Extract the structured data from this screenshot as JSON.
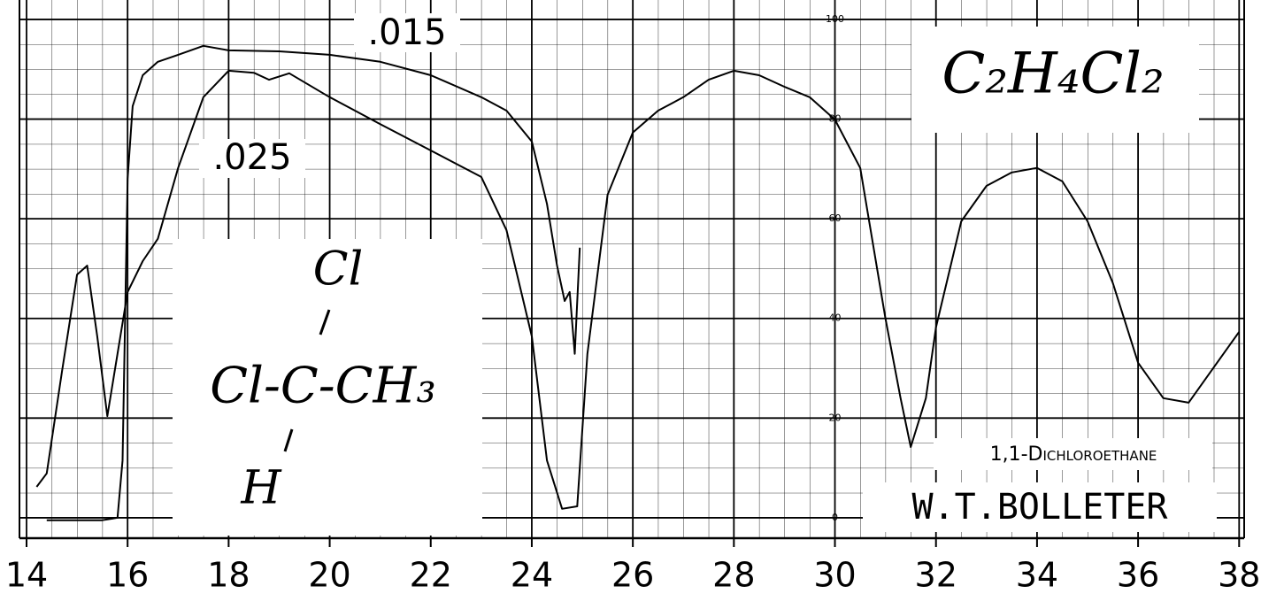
{
  "chart_data": {
    "type": "line",
    "xlim": [
      13.86,
      38.1
    ],
    "ylim": [
      -4.1,
      103.9
    ],
    "xticks": [
      14,
      16,
      18,
      20,
      22,
      24,
      26,
      28,
      30,
      32,
      34,
      36,
      38
    ],
    "yticks": [
      0,
      20,
      40,
      60,
      80,
      100
    ],
    "grid": true,
    "series": [
      {
        "name": ".015",
        "color": "#000000",
        "x": [
          14.4,
          15.0,
          15.5,
          15.8,
          15.9,
          16.0,
          16.1,
          16.3,
          16.6,
          17.0,
          17.5,
          18.0,
          19.0,
          20.0,
          21.0,
          22.0,
          23.0,
          23.5,
          24.0,
          24.3,
          24.5,
          24.65,
          24.75,
          24.85,
          24.95
        ],
        "values": [
          -0.5,
          -0.5,
          -0.5,
          0,
          11.5,
          68,
          82.6,
          88.8,
          91.5,
          92.9,
          94.7,
          93.8,
          93.6,
          92.9,
          91.5,
          88.8,
          84.4,
          81.7,
          75.5,
          63,
          50.6,
          43.5,
          45.3,
          32.9,
          54.2
        ]
      },
      {
        "name": ".025",
        "color": "#000000",
        "x": [
          14.2,
          14.4,
          14.7,
          15.0,
          15.2,
          15.4,
          15.6,
          15.8,
          16.0,
          16.3,
          16.6,
          17.0,
          17.5,
          18.0,
          18.5,
          18.8,
          19.2,
          20.0,
          21.0,
          22.0,
          23.0,
          23.5,
          24.0,
          24.3,
          24.6,
          24.9,
          25.1,
          25.5,
          26.0,
          26.5,
          27.0,
          27.5,
          28.0,
          28.5,
          29.0,
          29.5,
          30.0,
          30.5,
          31.0,
          31.3,
          31.5,
          31.8,
          32.0,
          32.5,
          33.0,
          33.5,
          34.0,
          34.5,
          35.0,
          35.5,
          36.0,
          36.5,
          37.0,
          37.5,
          38.0
        ],
        "values": [
          6.2,
          8.9,
          29.3,
          48.8,
          50.6,
          36.4,
          20.4,
          32.9,
          45.3,
          51.5,
          56,
          70.2,
          84.4,
          89.7,
          89.3,
          87.9,
          89.2,
          84.4,
          79,
          73.7,
          68.4,
          57.7,
          36.4,
          11.5,
          1.8,
          2.3,
          32.9,
          64.8,
          77.3,
          81.7,
          84.4,
          87.9,
          89.7,
          88.8,
          86.5,
          84.4,
          79.9,
          70.2,
          40,
          24,
          14.2,
          24,
          38.2,
          59.5,
          66.6,
          69.3,
          70.2,
          67.5,
          59.5,
          47.1,
          31.1,
          24,
          23.1,
          30.2,
          37.3
        ]
      }
    ],
    "annotations": {
      "formula": "C₂H₄Cl₂",
      "structure_top": "Cl",
      "structure_middle": "Cl-C-CH₃",
      "structure_bottom": "H",
      "compound_name": "1,1-Dichloroethane",
      "author": "W.T.BOLLETER"
    }
  }
}
